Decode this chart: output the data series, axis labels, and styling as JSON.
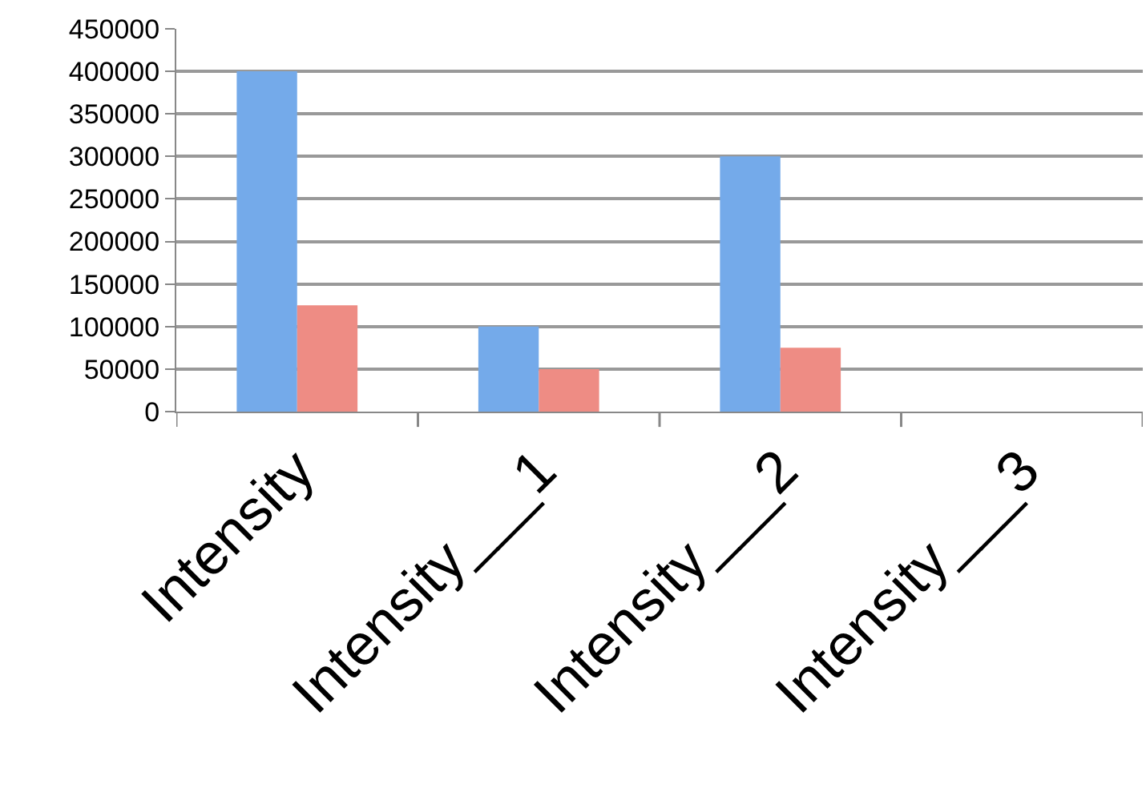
{
  "chart_data": {
    "type": "bar",
    "categories": [
      "Intensity",
      "Intensity___1",
      "Intensity___2",
      "Intensity___3"
    ],
    "series": [
      {
        "color": "#74aaea",
        "values": [
          400000,
          100000,
          300000,
          null
        ]
      },
      {
        "color": "#ee8c84",
        "values": [
          125000,
          50000,
          75000,
          null
        ]
      }
    ],
    "ylim": [
      0,
      450000
    ],
    "yticks": [
      0,
      50000,
      100000,
      150000,
      200000,
      250000,
      300000,
      350000,
      400000,
      450000
    ],
    "grid": "y"
  }
}
